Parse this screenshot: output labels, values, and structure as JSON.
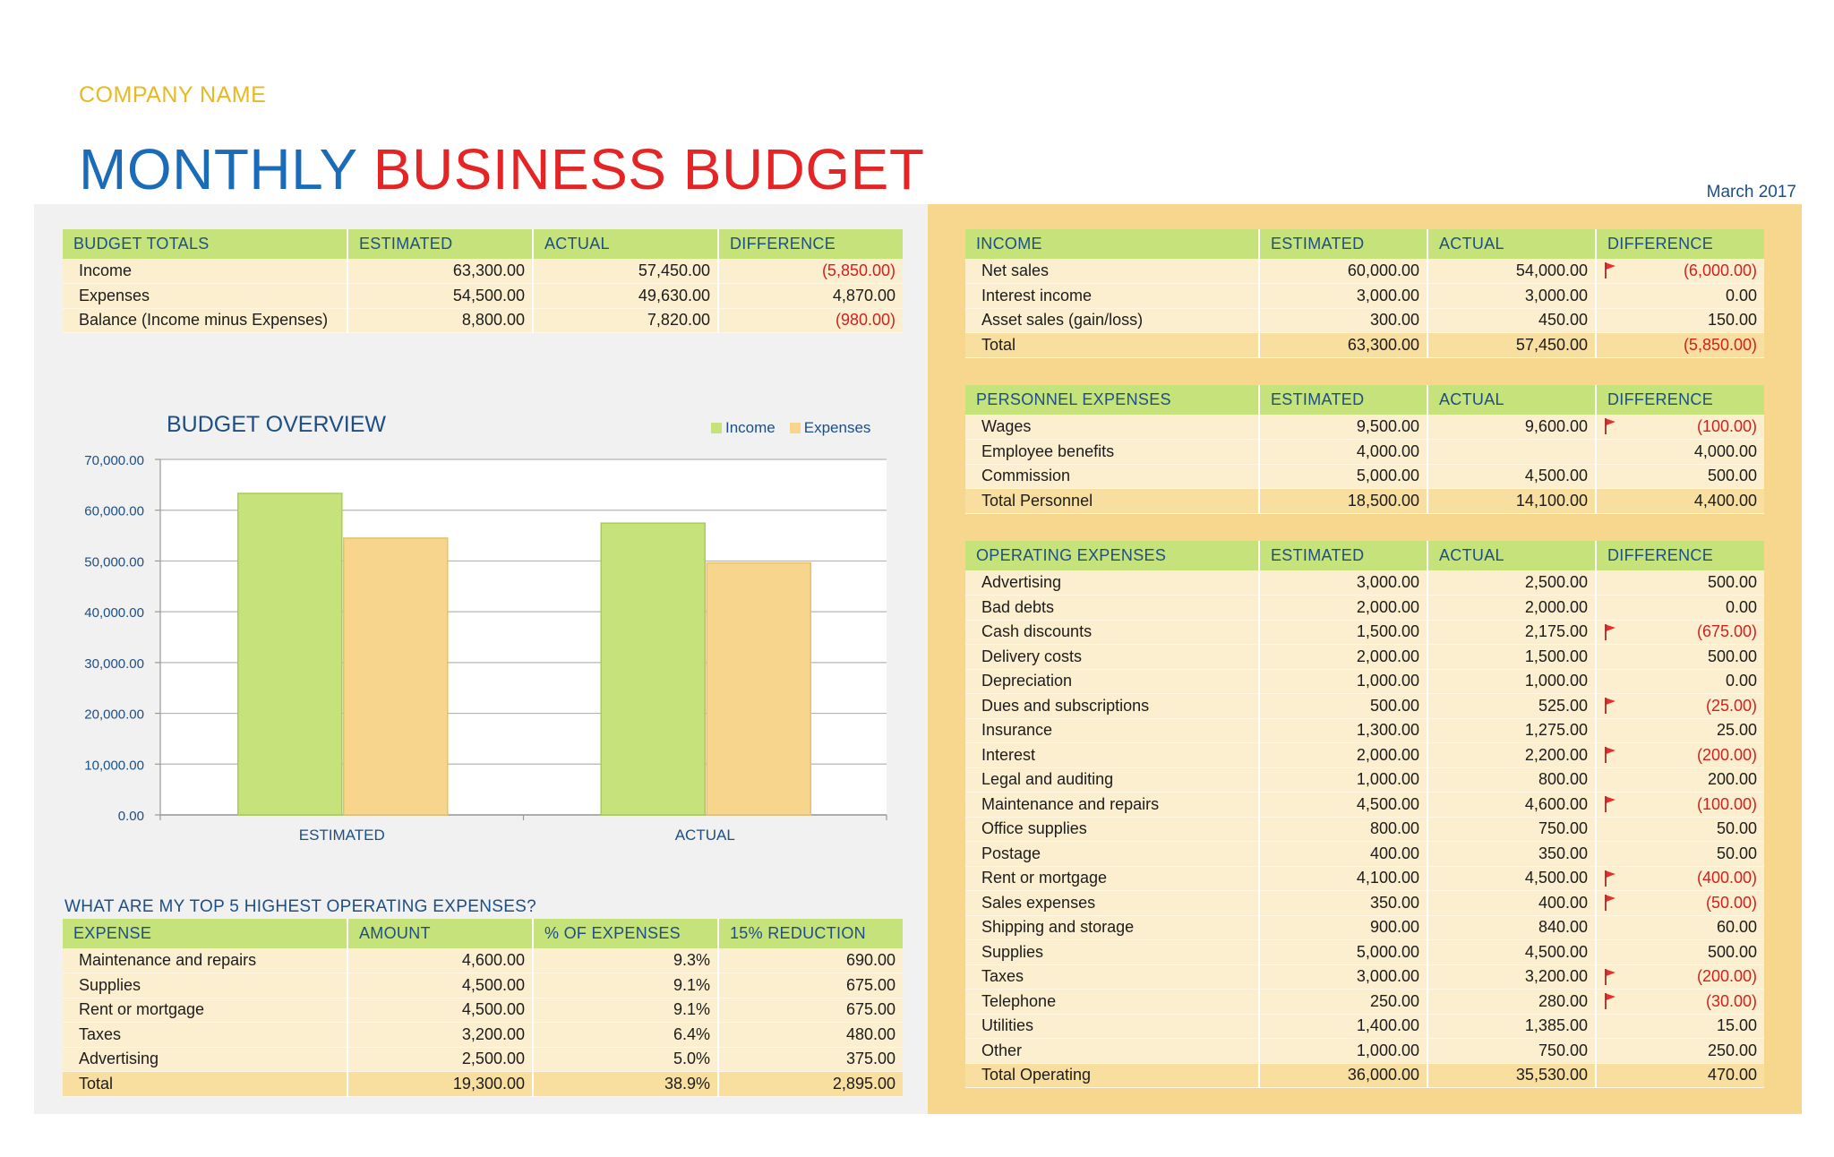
{
  "header": {
    "company": "COMPANY NAME",
    "title_part1": "MONTHLY",
    "title_part2": "BUSINESS BUDGET",
    "date": "March 2017"
  },
  "colors": {
    "income": "#c6e27a",
    "expenses": "#f8d58c",
    "title_blue": "#1a6bb8",
    "title_red": "#e52525",
    "negative": "#d21f1f"
  },
  "budget_totals": {
    "headers": [
      "BUDGET TOTALS",
      "ESTIMATED",
      "ACTUAL",
      "DIFFERENCE"
    ],
    "rows": [
      [
        "Income",
        "63,300.00",
        "57,450.00",
        "(5,850.00)"
      ],
      [
        "Expenses",
        "54,500.00",
        "49,630.00",
        "4,870.00"
      ],
      [
        "Balance (Income minus Expenses)",
        "8,800.00",
        "7,820.00",
        "(980.00)"
      ]
    ]
  },
  "chart": {
    "title": "BUDGET OVERVIEW",
    "legend": [
      "Income",
      "Expenses"
    ]
  },
  "chart_data": {
    "type": "bar",
    "title": "BUDGET OVERVIEW",
    "categories": [
      "ESTIMATED",
      "ACTUAL"
    ],
    "series": [
      {
        "name": "Income",
        "values": [
          63300,
          57450
        ]
      },
      {
        "name": "Expenses",
        "values": [
          54500,
          49630
        ]
      }
    ],
    "ylim": [
      0,
      70000
    ],
    "yticks": [
      "0.00",
      "10,000.00",
      "20,000.00",
      "30,000.00",
      "40,000.00",
      "50,000.00",
      "60,000.00",
      "70,000.00"
    ],
    "ytick_values": [
      0,
      10000,
      20000,
      30000,
      40000,
      50000,
      60000,
      70000
    ],
    "grid": true,
    "legend_position": "top-right"
  },
  "top5": {
    "title": "WHAT ARE MY TOP 5 HIGHEST OPERATING EXPENSES?",
    "headers": [
      "EXPENSE",
      "AMOUNT",
      "% OF EXPENSES",
      "15% REDUCTION"
    ],
    "rows": [
      [
        "Maintenance and repairs",
        "4,600.00",
        "9.3%",
        "690.00"
      ],
      [
        "Supplies",
        "4,500.00",
        "9.1%",
        "675.00"
      ],
      [
        "Rent or mortgage",
        "4,500.00",
        "9.1%",
        "675.00"
      ],
      [
        "Taxes",
        "3,200.00",
        "6.4%",
        "480.00"
      ],
      [
        "Advertising",
        "2,500.00",
        "5.0%",
        "375.00"
      ]
    ],
    "total": [
      "Total",
      "19,300.00",
      "38.9%",
      "2,895.00"
    ]
  },
  "income": {
    "headers": [
      "INCOME",
      "ESTIMATED",
      "ACTUAL",
      "DIFFERENCE"
    ],
    "rows": [
      [
        "Net sales",
        "60,000.00",
        "54,000.00",
        "(6,000.00)",
        true
      ],
      [
        "Interest income",
        "3,000.00",
        "3,000.00",
        "0.00",
        false
      ],
      [
        "Asset sales (gain/loss)",
        "300.00",
        "450.00",
        "150.00",
        false
      ]
    ],
    "total": [
      "Total",
      "63,300.00",
      "57,450.00",
      "(5,850.00)"
    ]
  },
  "personnel": {
    "headers": [
      "PERSONNEL EXPENSES",
      "ESTIMATED",
      "ACTUAL",
      "DIFFERENCE"
    ],
    "rows": [
      [
        "Wages",
        "9,500.00",
        "9,600.00",
        "(100.00)",
        true
      ],
      [
        "Employee benefits",
        "4,000.00",
        "",
        "4,000.00",
        false
      ],
      [
        "Commission",
        "5,000.00",
        "4,500.00",
        "500.00",
        false
      ]
    ],
    "total": [
      "Total Personnel",
      "18,500.00",
      "14,100.00",
      "4,400.00"
    ]
  },
  "operating": {
    "headers": [
      "OPERATING EXPENSES",
      "ESTIMATED",
      "ACTUAL",
      "DIFFERENCE"
    ],
    "rows": [
      [
        "Advertising",
        "3,000.00",
        "2,500.00",
        "500.00",
        false
      ],
      [
        "Bad debts",
        "2,000.00",
        "2,000.00",
        "0.00",
        false
      ],
      [
        "Cash discounts",
        "1,500.00",
        "2,175.00",
        "(675.00)",
        true
      ],
      [
        "Delivery costs",
        "2,000.00",
        "1,500.00",
        "500.00",
        false
      ],
      [
        "Depreciation",
        "1,000.00",
        "1,000.00",
        "0.00",
        false
      ],
      [
        "Dues and subscriptions",
        "500.00",
        "525.00",
        "(25.00)",
        true
      ],
      [
        "Insurance",
        "1,300.00",
        "1,275.00",
        "25.00",
        false
      ],
      [
        "Interest",
        "2,000.00",
        "2,200.00",
        "(200.00)",
        true
      ],
      [
        "Legal and auditing",
        "1,000.00",
        "800.00",
        "200.00",
        false
      ],
      [
        "Maintenance and repairs",
        "4,500.00",
        "4,600.00",
        "(100.00)",
        true
      ],
      [
        "Office supplies",
        "800.00",
        "750.00",
        "50.00",
        false
      ],
      [
        "Postage",
        "400.00",
        "350.00",
        "50.00",
        false
      ],
      [
        "Rent or mortgage",
        "4,100.00",
        "4,500.00",
        "(400.00)",
        true
      ],
      [
        "Sales expenses",
        "350.00",
        "400.00",
        "(50.00)",
        true
      ],
      [
        "Shipping and storage",
        "900.00",
        "840.00",
        "60.00",
        false
      ],
      [
        "Supplies",
        "5,000.00",
        "4,500.00",
        "500.00",
        false
      ],
      [
        "Taxes",
        "3,000.00",
        "3,200.00",
        "(200.00)",
        true
      ],
      [
        "Telephone",
        "250.00",
        "280.00",
        "(30.00)",
        true
      ],
      [
        "Utilities",
        "1,400.00",
        "1,385.00",
        "15.00",
        false
      ],
      [
        "Other",
        "1,000.00",
        "750.00",
        "250.00",
        false
      ]
    ],
    "total": [
      "Total Operating",
      "36,000.00",
      "35,530.00",
      "470.00"
    ]
  }
}
